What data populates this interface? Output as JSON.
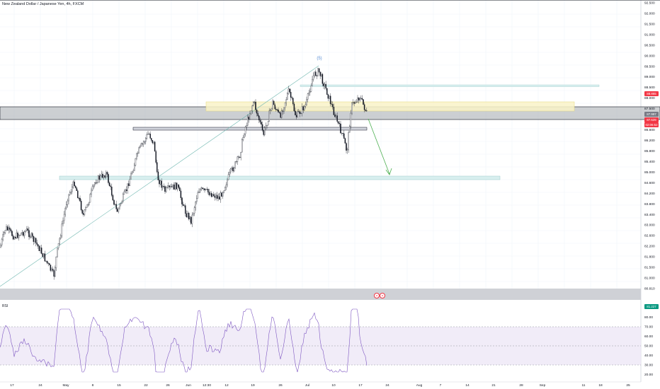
{
  "header": {
    "symbol_title": "New Zealand Dollar / Japanese Yen, 4h, FXCM"
  },
  "annotations": {
    "wave_label": "(5)"
  },
  "price_axis": {
    "ticks": [
      "92.500",
      "92.000",
      "91.500",
      "91.000",
      "90.500",
      "90.000",
      "89.500",
      "89.000",
      "88.500",
      "88.000",
      "87.500",
      "87.000",
      "86.600",
      "86.200",
      "85.800",
      "85.400",
      "85.000",
      "84.600",
      "84.200",
      "83.800",
      "83.400",
      "83.000",
      "82.600",
      "82.200",
      "81.800",
      "81.500",
      "81.000",
      "80.810"
    ]
  },
  "price_tags": {
    "alert": "88.865",
    "zone": "87.997",
    "current_price": "87.629",
    "countdown": "02:06:52",
    "low": "81.227"
  },
  "rsi": {
    "label": "RSI",
    "ticks": [
      "90.00",
      "80.00",
      "70.00",
      "60.00",
      "50.00",
      "40.00",
      "30.00",
      "20.00"
    ],
    "overbought": 70,
    "oversold": 30,
    "midline": 50
  },
  "time_axis": {
    "labels": [
      "17",
      "24",
      "May",
      "8",
      "15",
      "22",
      "26",
      "Jun",
      "12:30",
      "12",
      "19",
      "26",
      "Jul",
      "10",
      "17",
      "24",
      "Aug",
      "7",
      "14",
      "21",
      "28",
      "Sep",
      "11",
      "18",
      "25"
    ]
  },
  "badges": [
    "a",
    "a"
  ],
  "colors": {
    "candle_up": "#131722",
    "candle_down": "#131722",
    "grid": "#f0f3fa",
    "band": "#9aa0a6",
    "yellow_zone": "#f9f3c8",
    "teal_zone": "#d8efef",
    "arrow": "#4caf50",
    "rsi_line": "#7e57c2",
    "rsi_band": "#ede7f6",
    "alert_tag": "#f23645",
    "low_tag": "#089981",
    "zone_tag": "#787b86"
  }
}
